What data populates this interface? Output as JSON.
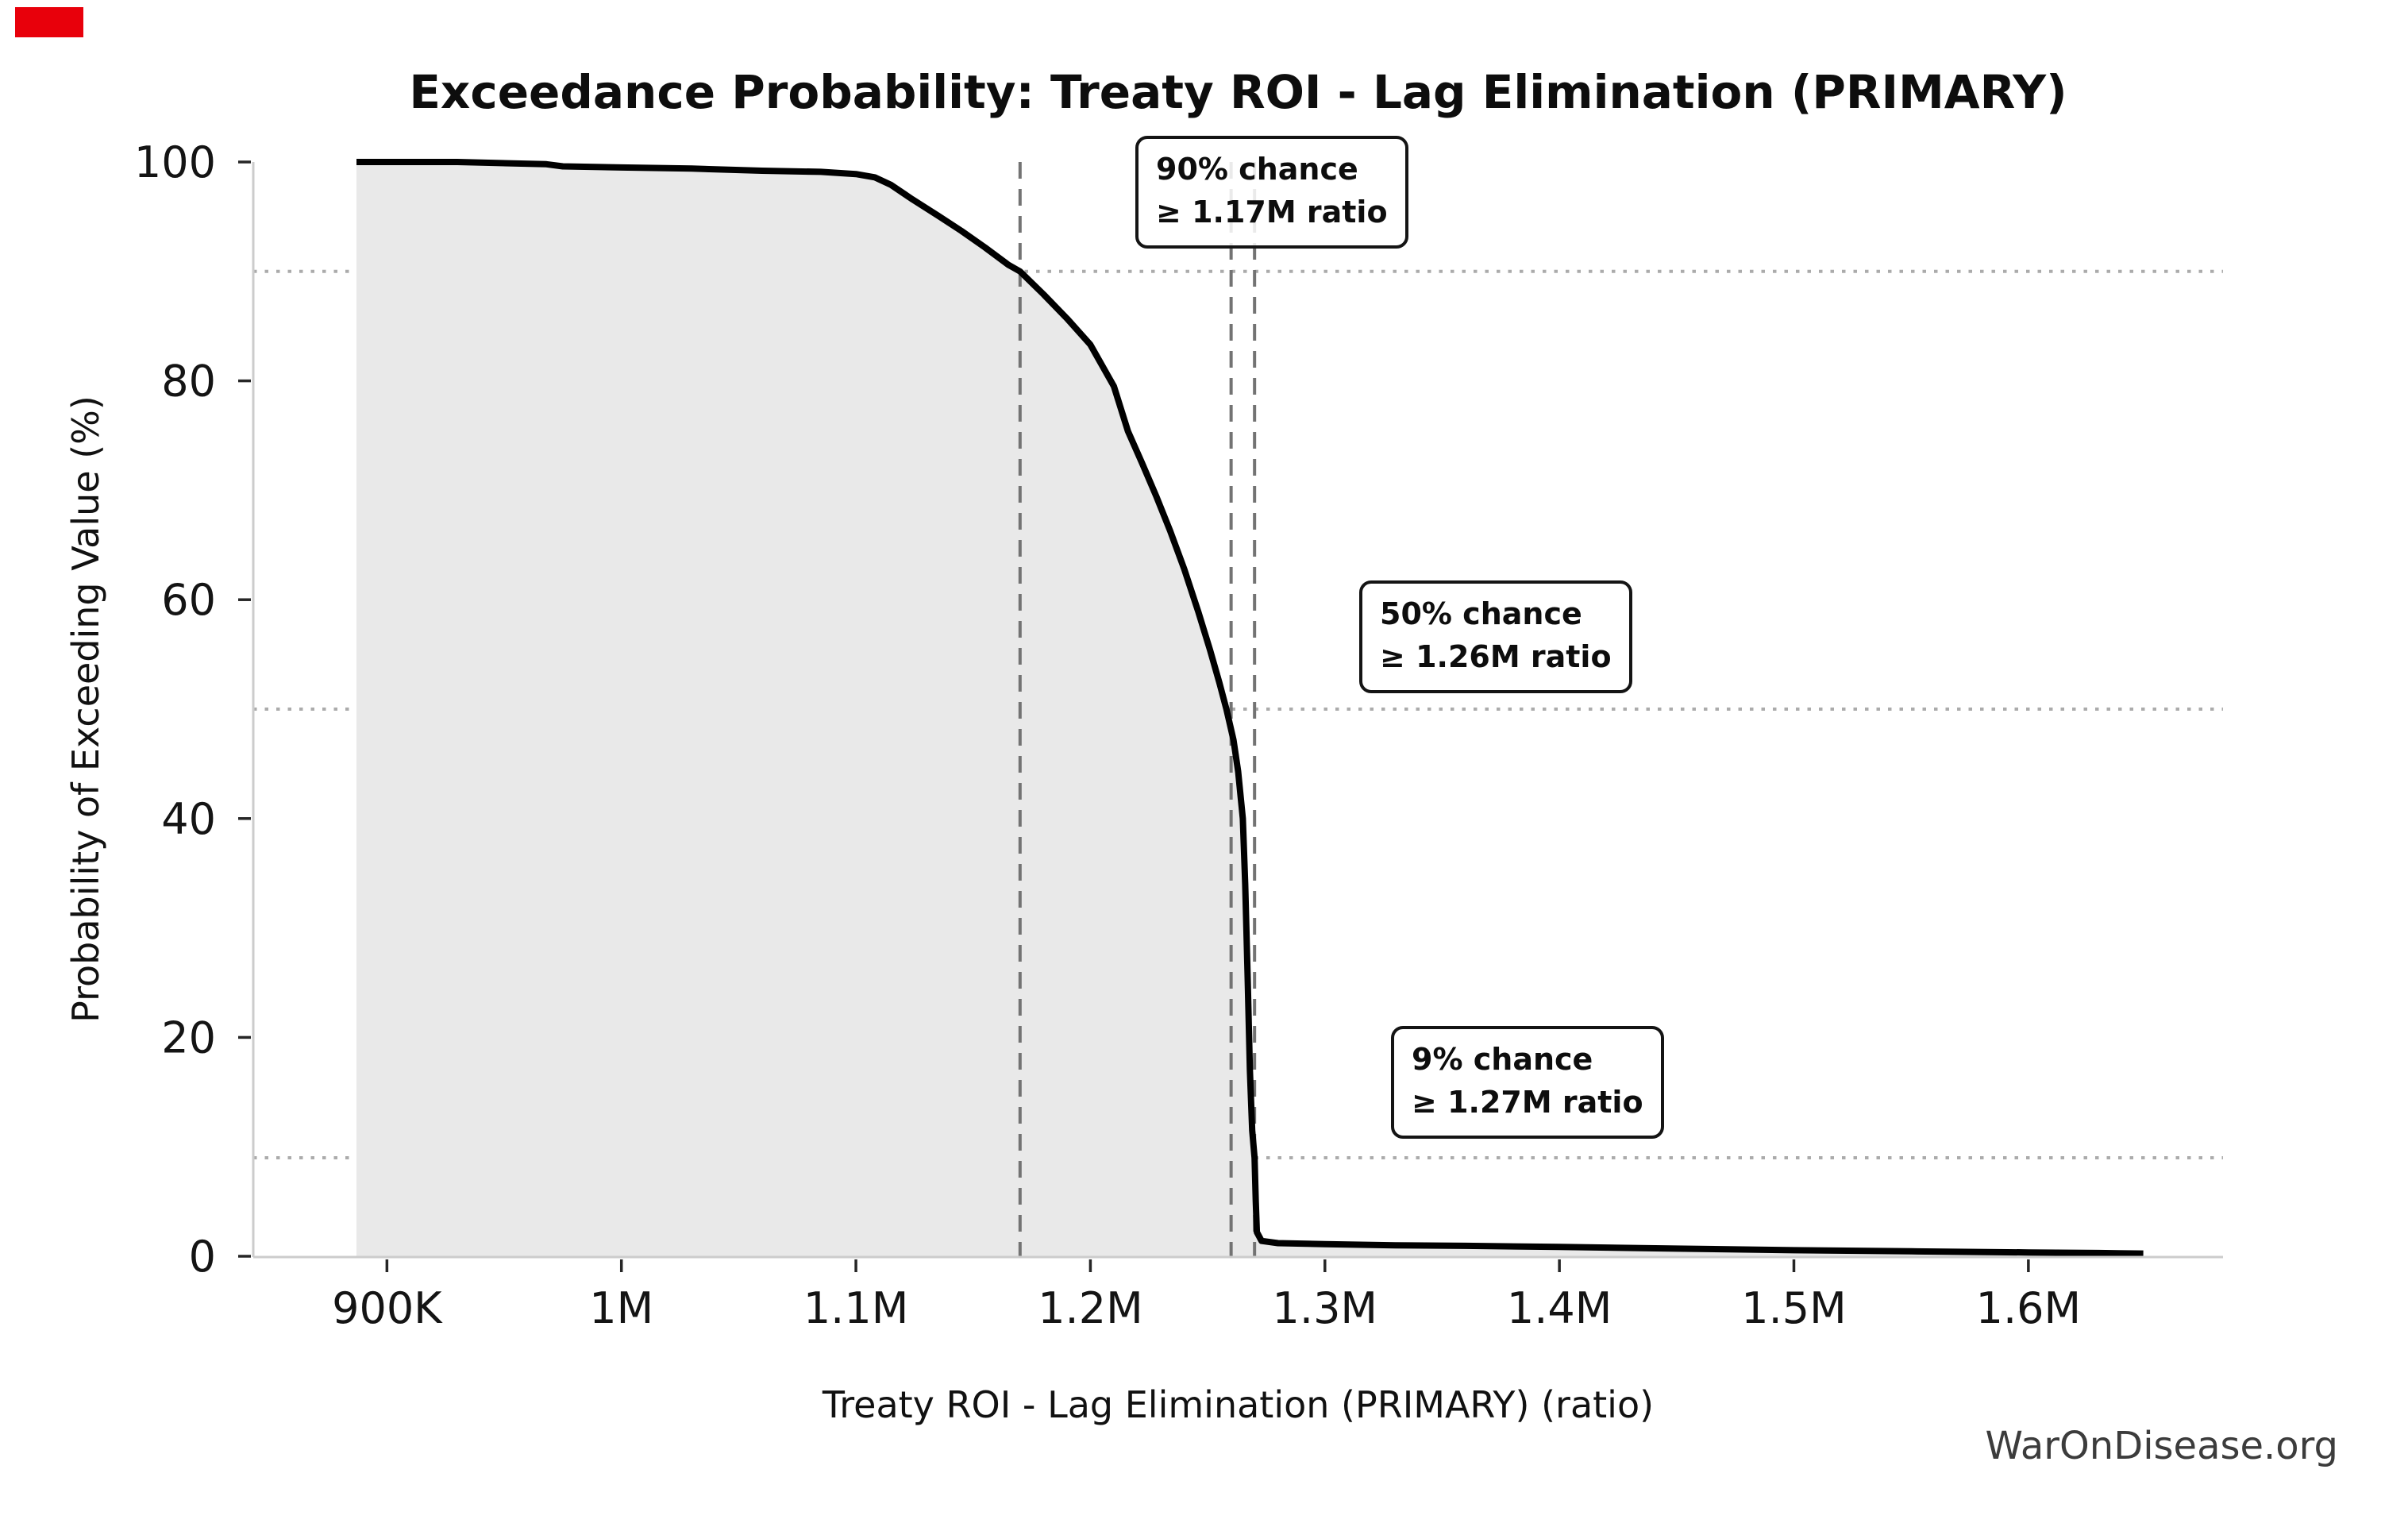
{
  "corner_marker": {
    "color": "#e8000b"
  },
  "chart_data": {
    "type": "area",
    "subtype": "exceedance-probability-curve",
    "title": "Exceedance Probability: Treaty ROI - Lag Elimination (PRIMARY)",
    "xlabel": "Treaty ROI - Lag Elimination (PRIMARY) (ratio)",
    "ylabel": "Probability of Exceeding Value (%)",
    "watermark": "WarOnDisease.org",
    "xlim": [
      843000,
      1683000
    ],
    "ylim": [
      0,
      100
    ],
    "grid": "horizontal-dotted-at-annotated-percentiles",
    "legend": "none",
    "x_ticks": [
      {
        "value": 900000,
        "label": "900K"
      },
      {
        "value": 1000000,
        "label": "1M"
      },
      {
        "value": 1100000,
        "label": "1.1M"
      },
      {
        "value": 1200000,
        "label": "1.2M"
      },
      {
        "value": 1300000,
        "label": "1.3M"
      },
      {
        "value": 1400000,
        "label": "1.4M"
      },
      {
        "value": 1500000,
        "label": "1.5M"
      },
      {
        "value": 1600000,
        "label": "1.6M"
      }
    ],
    "y_ticks": [
      {
        "value": 0,
        "label": "0"
      },
      {
        "value": 20,
        "label": "20"
      },
      {
        "value": 40,
        "label": "40"
      },
      {
        "value": 60,
        "label": "60"
      },
      {
        "value": 80,
        "label": "80"
      },
      {
        "value": 100,
        "label": "100"
      }
    ],
    "h_gridlines_pct": [
      90,
      50,
      9
    ],
    "v_threshold_lines": [
      {
        "value": 1170000,
        "label": "1.17M"
      },
      {
        "value": 1260000,
        "label": "1.26M"
      },
      {
        "value": 1270000,
        "label": "1.27M"
      }
    ],
    "annotations": [
      {
        "line1": "90% chance",
        "line2": "≥ 1.17M ratio"
      },
      {
        "line1": "50% chance",
        "line2": "≥ 1.26M ratio"
      },
      {
        "line1": "9% chance",
        "line2": "≥ 1.27M ratio"
      }
    ],
    "series": [
      {
        "name": "exceedance",
        "points": [
          [
            887000,
            100
          ],
          [
            930000,
            100
          ],
          [
            968000,
            99.8
          ],
          [
            975000,
            99.6
          ],
          [
            1000000,
            99.5
          ],
          [
            1030000,
            99.4
          ],
          [
            1060000,
            99.2
          ],
          [
            1085000,
            99.1
          ],
          [
            1100000,
            98.9
          ],
          [
            1108000,
            98.6
          ],
          [
            1115000,
            97.9
          ],
          [
            1124000,
            96.6
          ],
          [
            1135000,
            95.1
          ],
          [
            1145000,
            93.7
          ],
          [
            1155000,
            92.2
          ],
          [
            1165000,
            90.6
          ],
          [
            1170000,
            90.0
          ],
          [
            1180000,
            87.9
          ],
          [
            1190000,
            85.7
          ],
          [
            1200000,
            83.3
          ],
          [
            1210000,
            79.5
          ],
          [
            1216000,
            75.4
          ],
          [
            1222000,
            72.5
          ],
          [
            1228000,
            69.5
          ],
          [
            1234000,
            66.3
          ],
          [
            1240000,
            62.8
          ],
          [
            1246000,
            58.9
          ],
          [
            1251000,
            55.4
          ],
          [
            1255000,
            52.4
          ],
          [
            1258000,
            50.0
          ],
          [
            1261000,
            47.2
          ],
          [
            1263000,
            44.3
          ],
          [
            1265000,
            40.0
          ],
          [
            1266000,
            34.0
          ],
          [
            1267000,
            26.0
          ],
          [
            1268000,
            17.0
          ],
          [
            1269000,
            11.5
          ],
          [
            1270000,
            9.0
          ],
          [
            1270500,
            5.0
          ],
          [
            1271000,
            2.2
          ],
          [
            1273000,
            1.4
          ],
          [
            1280000,
            1.2
          ],
          [
            1300000,
            1.1
          ],
          [
            1330000,
            1.0
          ],
          [
            1360000,
            0.95
          ],
          [
            1400000,
            0.85
          ],
          [
            1450000,
            0.7
          ],
          [
            1500000,
            0.55
          ],
          [
            1550000,
            0.45
          ],
          [
            1600000,
            0.35
          ],
          [
            1630000,
            0.3
          ],
          [
            1649000,
            0.25
          ]
        ]
      }
    ],
    "colors": {
      "curve": "#000000",
      "fill": "#e9e9e9",
      "gridline": "#ababab",
      "threshold_line": "#737373",
      "spine": "#cccccc",
      "tick": "#262626",
      "tick_label": "#141414"
    }
  }
}
